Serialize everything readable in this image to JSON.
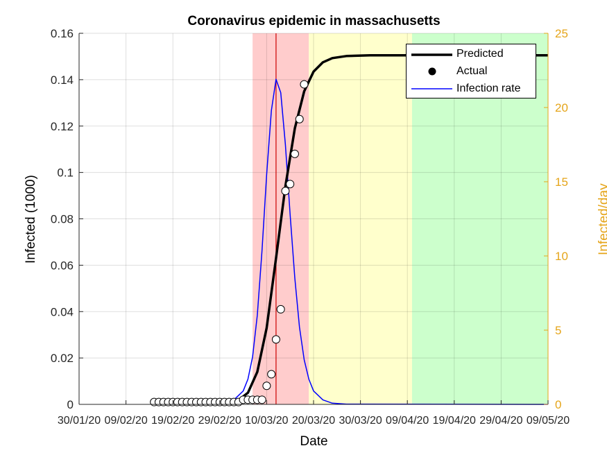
{
  "chart_data": {
    "type": "line",
    "title": "Coronavirus epidemic in massachusetts",
    "xlabel": "Date",
    "ylabel_left": "Infected (1000)",
    "ylabel_right": "Infected/day",
    "x_ticks": [
      "30/01/20",
      "09/02/20",
      "19/02/20",
      "29/02/20",
      "10/03/20",
      "20/03/20",
      "30/03/20",
      "09/04/20",
      "19/04/20",
      "29/04/20",
      "09/05/20"
    ],
    "x_range": [
      "30/01/20",
      "09/05/20"
    ],
    "y_left_ticks": [
      "0",
      "0.02",
      "0.04",
      "0.06",
      "0.08",
      "0.1",
      "0.12",
      "0.14",
      "0.16"
    ],
    "y_left_range": [
      0,
      0.16
    ],
    "y_right_ticks": [
      "0",
      "5",
      "10",
      "15",
      "20",
      "25"
    ],
    "y_right_range": [
      0,
      25
    ],
    "grid": true,
    "legend_position": "top-right",
    "legend": [
      "Predicted",
      "Actual",
      "Infection rate"
    ],
    "colors": {
      "predicted": "#000000",
      "actual_fill": "#ffffff",
      "rate": "#0000ff",
      "right_axis": "#e5a51a",
      "band_red": "#ffcccc",
      "band_yellow": "#ffffcc",
      "band_green": "#ccffcc",
      "peak_line": "#cc0000"
    },
    "bands": [
      {
        "color": "red",
        "from": "07/03/20",
        "to": "19/03/20"
      },
      {
        "color": "yellow",
        "from": "19/03/20",
        "to": "10/04/20"
      },
      {
        "color": "green",
        "from": "10/04/20",
        "to": "09/05/20"
      }
    ],
    "peak_date": "12/03/20",
    "series": [
      {
        "name": "Predicted",
        "axis": "left",
        "x": [
          "27/02/20",
          "01/03/20",
          "04/03/20",
          "06/03/20",
          "08/03/20",
          "10/03/20",
          "12/03/20",
          "14/03/20",
          "16/03/20",
          "18/03/20",
          "20/03/20",
          "22/03/20",
          "24/03/20",
          "27/03/20",
          "01/04/20",
          "09/05/20"
        ],
        "y": [
          0.0001,
          0.0004,
          0.0018,
          0.005,
          0.014,
          0.033,
          0.063,
          0.094,
          0.119,
          0.135,
          0.1435,
          0.1475,
          0.1493,
          0.1502,
          0.1505,
          0.1505
        ]
      },
      {
        "name": "Actual",
        "axis": "left",
        "x": [
          "15/02/20",
          "16/02/20",
          "17/02/20",
          "18/02/20",
          "19/02/20",
          "20/02/20",
          "21/02/20",
          "22/02/20",
          "23/02/20",
          "24/02/20",
          "25/02/20",
          "26/02/20",
          "27/02/20",
          "28/02/20",
          "29/02/20",
          "01/03/20",
          "02/03/20",
          "03/03/20",
          "04/03/20",
          "05/03/20",
          "06/03/20",
          "07/03/20",
          "08/03/20",
          "09/03/20",
          "10/03/20",
          "11/03/20",
          "12/03/20",
          "13/03/20",
          "14/03/20",
          "15/03/20",
          "16/03/20",
          "17/03/20",
          "18/03/20"
        ],
        "y": [
          0.001,
          0.001,
          0.001,
          0.001,
          0.001,
          0.001,
          0.001,
          0.001,
          0.001,
          0.001,
          0.001,
          0.001,
          0.001,
          0.001,
          0.001,
          0.001,
          0.001,
          0.001,
          0.001,
          0.002,
          0.002,
          0.002,
          0.002,
          0.002,
          0.008,
          0.013,
          0.028,
          0.041,
          0.092,
          0.095,
          0.108,
          0.123,
          0.138
        ]
      },
      {
        "name": "Infection rate",
        "axis": "right",
        "x": [
          "27/02/20",
          "01/03/20",
          "03/03/20",
          "05/03/20",
          "06/03/20",
          "07/03/20",
          "08/03/20",
          "09/03/20",
          "10/03/20",
          "11/03/20",
          "12/03/20",
          "13/03/20",
          "14/03/20",
          "15/03/20",
          "16/03/20",
          "17/03/20",
          "18/03/20",
          "19/03/20",
          "20/03/20",
          "22/03/20",
          "24/03/20",
          "27/03/20",
          "09/05/20"
        ],
        "y": [
          0.02,
          0.1,
          0.3,
          0.9,
          1.7,
          3.2,
          6.0,
          10.3,
          15.5,
          19.8,
          21.9,
          21.0,
          17.5,
          12.8,
          8.5,
          5.2,
          3.0,
          1.7,
          0.9,
          0.3,
          0.08,
          0.02,
          0.0
        ]
      }
    ]
  }
}
